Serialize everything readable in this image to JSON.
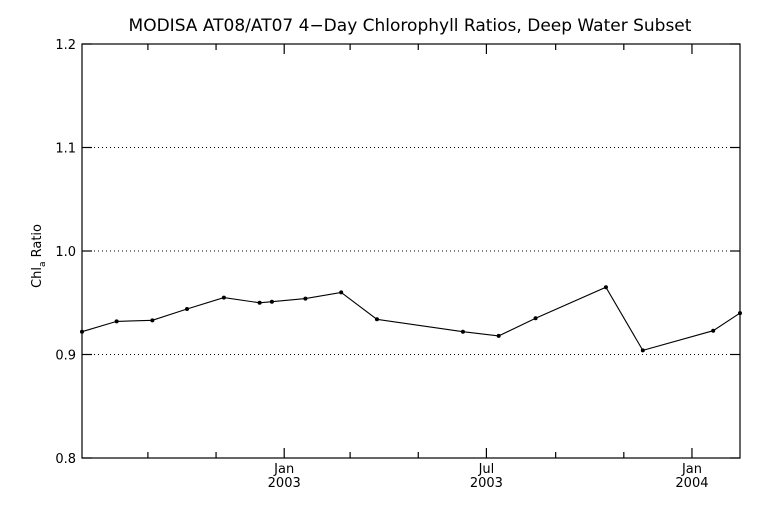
{
  "chart_data": {
    "type": "line",
    "title": "MODISA AT08/AT07 4−Day Chlorophyll Ratios, Deep Water Subset",
    "ylabel": "Chl",
    "ylabel_sub": "a",
    "ylabel_rest": " Ratio",
    "xlabel": "",
    "xlim": [
      "2002-07-04",
      "2004-02-13"
    ],
    "ylim": [
      0.8,
      1.2
    ],
    "y_ticks": [
      0.8,
      0.9,
      1.0,
      1.1,
      1.2
    ],
    "y_tick_labels": [
      "0.8",
      "0.9",
      "1.0",
      "1.1",
      "1.2"
    ],
    "grid_y": [
      0.9,
      1.0,
      1.1
    ],
    "grid": "horizontal dotted",
    "x_major_ticks": [
      {
        "date": "2003-01-01",
        "label1": "Jan",
        "label2": "2003"
      },
      {
        "date": "2003-07-01",
        "label1": "Jul",
        "label2": "2003"
      },
      {
        "date": "2004-01-01",
        "label1": "Jan",
        "label2": "2004"
      }
    ],
    "x_minor_ticks": [
      "2002-09-01",
      "2002-11-01",
      "2003-03-01",
      "2003-05-01",
      "2003-09-01",
      "2003-11-01"
    ],
    "series": [
      {
        "x": [
          "2002-07-04",
          "2002-08-04",
          "2002-09-05",
          "2002-10-06",
          "2002-11-08",
          "2002-12-10",
          "2002-12-21",
          "2003-01-20",
          "2003-02-21",
          "2003-03-25",
          "2003-06-10",
          "2003-07-12",
          "2003-08-14",
          "2003-10-16",
          "2003-11-18",
          "2004-01-20",
          "2004-02-13"
        ],
        "y": [
          0.922,
          0.932,
          0.933,
          0.944,
          0.955,
          0.95,
          0.951,
          0.954,
          0.96,
          0.934,
          0.922,
          0.918,
          0.935,
          0.965,
          0.904,
          0.923,
          0.94
        ]
      }
    ]
  }
}
